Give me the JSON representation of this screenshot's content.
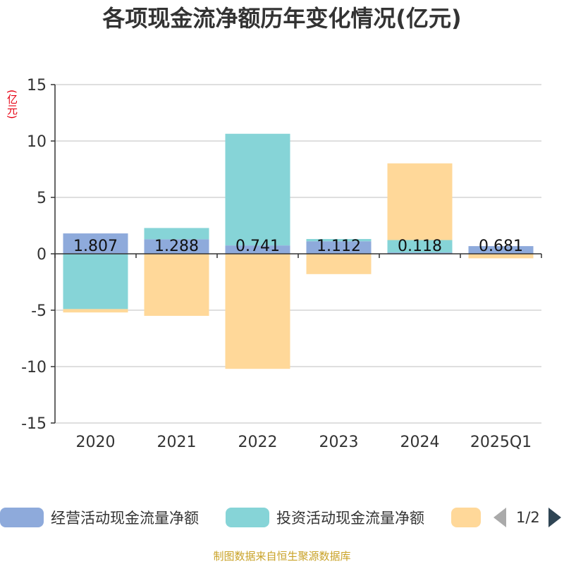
{
  "title": "各项现金流净额历年变化情况(亿元)",
  "unit": "(亿元)",
  "footer": "制图数据来自恒生聚源数据库",
  "legend": {
    "items": [
      {
        "label": "经营活动现金流量净额",
        "color": "#8eaadb"
      },
      {
        "label": "投资活动现金流量净额",
        "color": "#86d4d7"
      },
      {
        "label": "",
        "color": "#ffd899"
      }
    ],
    "pager": "1/2"
  },
  "chart_data": {
    "type": "bar",
    "stacked": true,
    "categories": [
      "2020",
      "2021",
      "2022",
      "2023",
      "2024",
      "2025Q1"
    ],
    "ylim": [
      -15,
      15
    ],
    "yticks": [
      15,
      10,
      5,
      0,
      -5,
      -10,
      -15
    ],
    "series": [
      {
        "name": "经营活动现金流量净额",
        "color": "#8eaadb",
        "values": [
          1.807,
          1.288,
          0.741,
          1.112,
          0.118,
          0.681
        ],
        "labels": [
          "1.807",
          "1.288",
          "0.741",
          "1.112",
          "0.118",
          "0.681"
        ]
      },
      {
        "name": "投资活动现金流量净额",
        "color": "#86d4d7",
        "values": [
          -4.9,
          1.0,
          9.9,
          0.2,
          1.1,
          0.0
        ]
      },
      {
        "name": "",
        "color": "#ffd899",
        "values": [
          -0.3,
          -5.5,
          -10.2,
          -1.8,
          6.8,
          -0.4
        ]
      }
    ],
    "grid": true,
    "legend_position": "bottom"
  }
}
